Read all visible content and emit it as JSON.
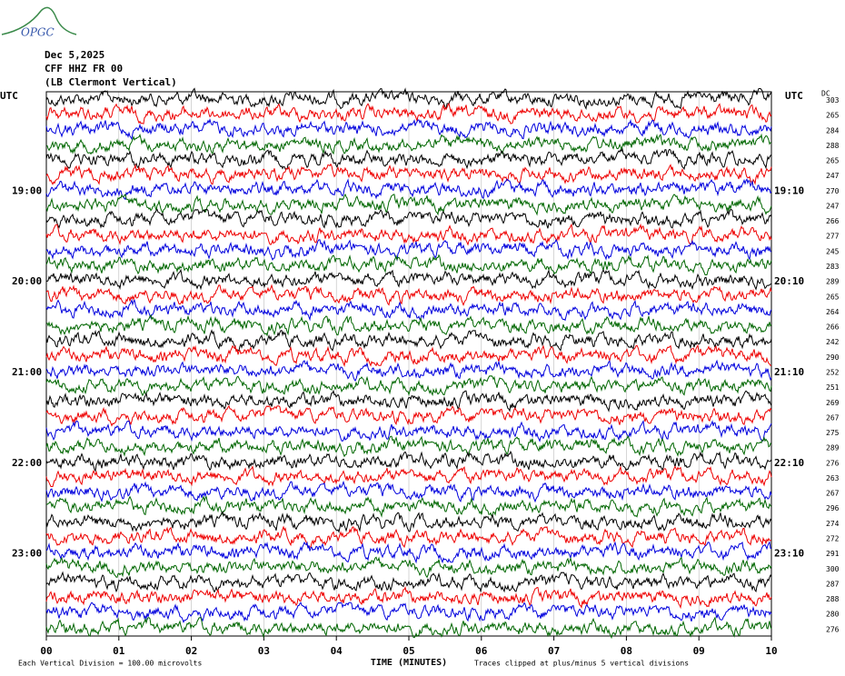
{
  "logo": "OPGC",
  "header": {
    "date": "Dec 5,2025",
    "station": "CFF HHZ FR 00",
    "location": "(LB  Clermont Vertical)"
  },
  "left_axis": {
    "title": "UTC",
    "labels": [
      "19:00",
      "20:00",
      "21:00",
      "22:00",
      "23:00"
    ]
  },
  "right_axis": {
    "title": "UTC",
    "labels": [
      "19:10",
      "20:10",
      "21:10",
      "22:10",
      "23:10"
    ]
  },
  "dc": {
    "title": "DC",
    "values": [
      303,
      265,
      284,
      288,
      265,
      247,
      270,
      247,
      266,
      277,
      245,
      283,
      289,
      265,
      264,
      266,
      242,
      290,
      252,
      251,
      269,
      267,
      275,
      289,
      276,
      263,
      267,
      296,
      274,
      272,
      291,
      300,
      287,
      288,
      280,
      276
    ]
  },
  "x_axis": {
    "title": "TIME (MINUTES)",
    "ticks": [
      "00",
      "01",
      "02",
      "03",
      "04",
      "05",
      "06",
      "07",
      "08",
      "09",
      "10"
    ]
  },
  "footer": {
    "scale": "Each Vertical Division =  100.00 microvolts",
    "clip": "Traces clipped at plus/minus 5 vertical divisions"
  }
}
